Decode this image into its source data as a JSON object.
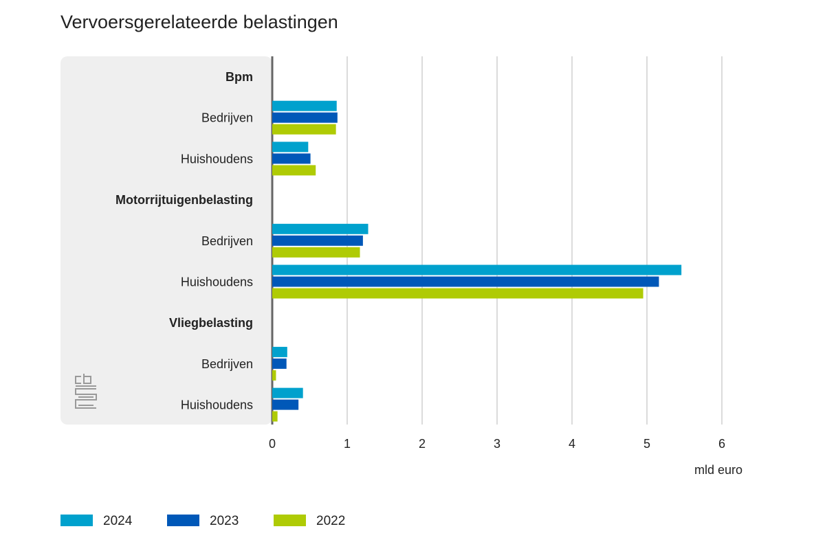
{
  "chart_data": {
    "type": "bar",
    "orientation": "horizontal",
    "title": "Vervoersgerelateerde belastingen",
    "xlabel": "mld euro",
    "xlim": [
      0,
      6
    ],
    "xticks": [
      "0",
      "1",
      "2",
      "3",
      "4",
      "5",
      "6"
    ],
    "grid": true,
    "legend_position": "bottom-left",
    "rows": [
      {
        "label": "Bpm",
        "heading": true
      },
      {
        "label": "Bedrijven",
        "heading": false,
        "values": [
          0.86,
          0.87,
          0.85
        ]
      },
      {
        "label": "Huishoudens",
        "heading": false,
        "values": [
          0.48,
          0.51,
          0.58
        ]
      },
      {
        "label": "Motorrijtuigenbelasting",
        "heading": true
      },
      {
        "label": "Bedrijven",
        "heading": false,
        "values": [
          1.28,
          1.21,
          1.17
        ]
      },
      {
        "label": "Huishoudens",
        "heading": false,
        "values": [
          5.46,
          5.16,
          4.95
        ]
      },
      {
        "label": "Vliegbelasting",
        "heading": true
      },
      {
        "label": "Bedrijven",
        "heading": false,
        "values": [
          0.2,
          0.19,
          0.05
        ]
      },
      {
        "label": "Huishoudens",
        "heading": false,
        "values": [
          0.41,
          0.35,
          0.07
        ]
      }
    ],
    "series": [
      {
        "name": "2024",
        "color": "#00a1cd"
      },
      {
        "name": "2023",
        "color": "#0058b8"
      },
      {
        "name": "2022",
        "color": "#afcb05"
      }
    ]
  },
  "logo": "cbs"
}
